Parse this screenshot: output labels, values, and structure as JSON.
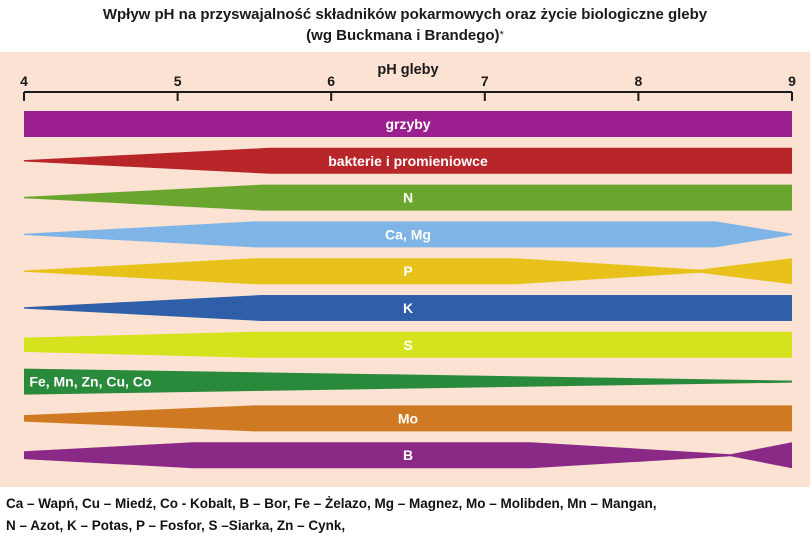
{
  "title": "Wpływ pH na przyswajalność składników pokarmowych oraz życie biologiczne gleby",
  "subtitle": "(wg Buckmana i Brandego)",
  "subtitle_mark": "*",
  "axis": {
    "label": "pH gleby",
    "min": 4,
    "max": 9,
    "ticks": [
      "4",
      "5",
      "6",
      "7",
      "8",
      "9"
    ]
  },
  "bands": [
    {
      "label": "grzyby",
      "color": "#9b1f8f",
      "label_at": 6.5,
      "profile": [
        [
          4,
          1
        ],
        [
          9,
          1
        ]
      ]
    },
    {
      "label": "bakterie i promieniowce",
      "color": "#b8262a",
      "label_at": 6.5,
      "profile": [
        [
          4,
          0.05
        ],
        [
          5.6,
          1
        ],
        [
          9,
          1
        ]
      ]
    },
    {
      "label": "N",
      "color": "#6aa62f",
      "label_at": 6.5,
      "profile": [
        [
          4,
          0.05
        ],
        [
          5.55,
          1
        ],
        [
          9,
          1
        ]
      ]
    },
    {
      "label": "Ca, Mg",
      "color": "#7fb4e6",
      "label_at": 6.5,
      "profile": [
        [
          4,
          0.05
        ],
        [
          5.5,
          1
        ],
        [
          8.5,
          1
        ],
        [
          9,
          0.05
        ]
      ]
    },
    {
      "label": "P",
      "color": "#e8c21a",
      "label_at": 6.5,
      "profile": [
        [
          4,
          0.05
        ],
        [
          5.5,
          1
        ],
        [
          7.2,
          1
        ],
        [
          8.4,
          0.12
        ],
        [
          9,
          1
        ]
      ]
    },
    {
      "label": "K",
      "color": "#2e5fa8",
      "label_at": 6.5,
      "profile": [
        [
          4,
          0.05
        ],
        [
          5.55,
          1
        ],
        [
          9,
          1
        ]
      ]
    },
    {
      "label": "S",
      "color": "#d7e21f",
      "label_at": 6.5,
      "profile": [
        [
          4,
          0.55
        ],
        [
          5.5,
          1
        ],
        [
          9,
          1
        ]
      ]
    },
    {
      "label": "Fe, Mn, Zn, Cu, Co",
      "color": "#2a8a3c",
      "label_at": 4.1,
      "label_align": "start",
      "profile": [
        [
          4,
          1
        ],
        [
          9,
          0.08
        ]
      ]
    },
    {
      "label": "Mo",
      "color": "#cf7a22",
      "label_at": 6.5,
      "profile": [
        [
          4,
          0.25
        ],
        [
          5.5,
          1
        ],
        [
          9,
          1
        ]
      ]
    },
    {
      "label": "B",
      "color": "#8a2a86",
      "label_at": 6.5,
      "profile": [
        [
          4,
          0.3
        ],
        [
          5.1,
          1
        ],
        [
          7.3,
          1
        ],
        [
          8.6,
          0.08
        ],
        [
          9,
          1
        ]
      ]
    }
  ],
  "legend": {
    "line1": "Ca – Wapń, Cu – Miedź, Co - Kobalt, B – Bor, Fe – Żelazo, Mg – Magnez, Mo – Molibden, Mn – Mangan,",
    "line2": "N – Azot, K – Potas, P – Fosfor, S –Siarka, Zn – Cynk,"
  }
}
